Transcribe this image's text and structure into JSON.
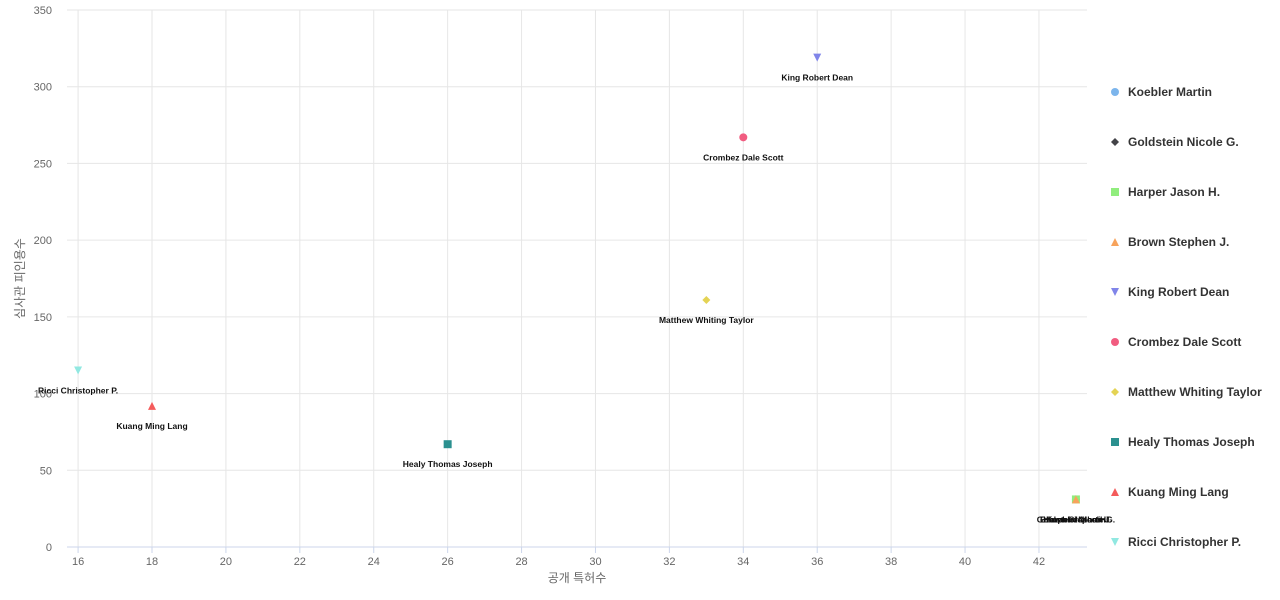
{
  "chart_data": {
    "type": "scatter",
    "title": "",
    "xlabel": "공개 특허수",
    "ylabel": "심사관 피인용수",
    "xlim": [
      15.7,
      43.3
    ],
    "ylim": [
      0,
      350
    ],
    "x_ticks": [
      16,
      18,
      20,
      22,
      24,
      26,
      28,
      30,
      32,
      34,
      36,
      38,
      40,
      42
    ],
    "y_ticks": [
      0,
      50,
      100,
      150,
      200,
      250,
      300,
      350
    ],
    "grid": true,
    "legend_position": "right",
    "series": [
      {
        "name": "Koebler Martin",
        "marker": "circle",
        "color": "#7cb5ec",
        "x": 43,
        "y": 31
      },
      {
        "name": "Goldstein Nicole G.",
        "marker": "diamond",
        "color": "#434348",
        "x": 43,
        "y": 31
      },
      {
        "name": "Harper Jason H.",
        "marker": "square",
        "color": "#90ed7d",
        "x": 43,
        "y": 31
      },
      {
        "name": "Brown Stephen J.",
        "marker": "triangle",
        "color": "#f7a35c",
        "x": 43,
        "y": 31
      },
      {
        "name": "King Robert Dean",
        "marker": "triangle-down",
        "color": "#8085e9",
        "x": 36,
        "y": 319
      },
      {
        "name": "Crombez Dale Scott",
        "marker": "circle",
        "color": "#f15c80",
        "x": 34,
        "y": 267
      },
      {
        "name": "Matthew Whiting Taylor",
        "marker": "diamond",
        "color": "#e4d354",
        "x": 33,
        "y": 161
      },
      {
        "name": "Healy Thomas Joseph",
        "marker": "square",
        "color": "#2b908f",
        "x": 26,
        "y": 67
      },
      {
        "name": "Kuang Ming Lang",
        "marker": "triangle",
        "color": "#f45b5b",
        "x": 18,
        "y": 92
      },
      {
        "name": "Ricci Christopher P.",
        "marker": "triangle-down",
        "color": "#91e8e1",
        "x": 16,
        "y": 115
      }
    ]
  }
}
